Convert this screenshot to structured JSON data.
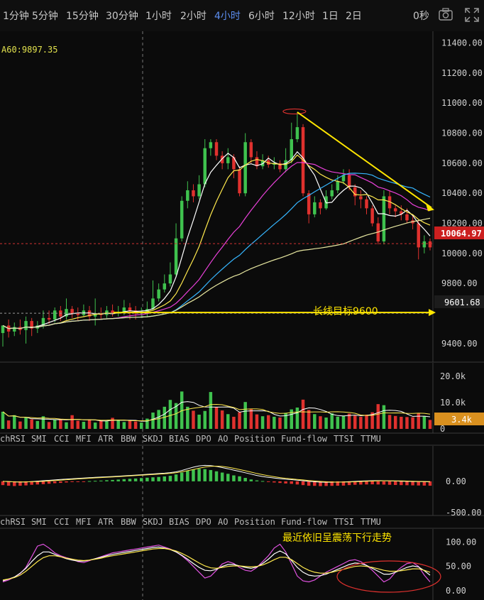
{
  "toolbar": {
    "timeframes": [
      "1分钟",
      "5分钟",
      "15分钟",
      "30分钟",
      "1小时",
      "2小时",
      "4小时",
      "6小时",
      "12小时",
      "1日",
      "2日"
    ],
    "active_timeframe": "4小时",
    "countdown": "0秒",
    "icons": [
      "camera-icon",
      "fullscreen-icon"
    ]
  },
  "ma_readout": "A60:9897.35",
  "price_panel": {
    "current_price_label": "10064.97",
    "target_label": "9601.68",
    "annotations": {
      "target_text": "长线目标9600"
    },
    "colors": {
      "up": "#3fc24e",
      "down": "#e0312e",
      "annotation": "#ffe600"
    }
  },
  "volume_panel": {
    "current_label": "3.4k"
  },
  "indicator_tabs_1": [
    "chRSI",
    "SMI",
    "CCI",
    "MFI",
    "ATR",
    "BBW",
    "SKDJ",
    "BIAS",
    "DPO",
    "AO",
    "Position",
    "Fund-flow",
    "TTSI",
    "TTMU"
  ],
  "indicator_tabs_2": [
    "chRSI",
    "SMI",
    "CCI",
    "MFI",
    "ATR",
    "BBW",
    "SKDJ",
    "BIAS",
    "DPO",
    "AO",
    "Position",
    "Fund-flow",
    "TTSI",
    "TTMU"
  ],
  "oscillator_panel": {
    "annotation": "最近依旧呈震荡下行走势"
  },
  "chart_data": [
    {
      "type": "candlestick",
      "ylim": [
        9300,
        11450
      ],
      "y_ticks": [
        9400,
        9600,
        9800,
        10000,
        10200,
        10400,
        10600,
        10800,
        11000,
        11200,
        11400
      ],
      "y_tick_labels": [
        "9400.00",
        "",
        "9800.00",
        "10000.00",
        "10200.00",
        "10400.00",
        "10600.00",
        "10800.00",
        "11000.00",
        "11200.00",
        "11400.00"
      ],
      "candles": [
        [
          9470,
          9520,
          9470,
          9380
        ],
        [
          9520,
          9480,
          9560,
          9440
        ],
        [
          9480,
          9510,
          9540,
          9450
        ],
        [
          9510,
          9490,
          9560,
          9460
        ],
        [
          9490,
          9550,
          9580,
          9400
        ],
        [
          9550,
          9500,
          9570,
          9450
        ],
        [
          9500,
          9520,
          9550,
          9470
        ],
        [
          9520,
          9570,
          9620,
          9500
        ],
        [
          9570,
          9560,
          9620,
          9530
        ],
        [
          9560,
          9620,
          9640,
          9540
        ],
        [
          9620,
          9580,
          9650,
          9550
        ],
        [
          9580,
          9630,
          9700,
          9560
        ],
        [
          9630,
          9600,
          9650,
          9570
        ],
        [
          9600,
          9590,
          9640,
          9550
        ],
        [
          9590,
          9620,
          9660,
          9580
        ],
        [
          9620,
          9580,
          9650,
          9550
        ],
        [
          9580,
          9600,
          9700,
          9520
        ],
        [
          9600,
          9590,
          9640,
          9560
        ],
        [
          9590,
          9620,
          9650,
          9570
        ],
        [
          9620,
          9600,
          9660,
          9580
        ],
        [
          9600,
          9610,
          9650,
          9580
        ],
        [
          9610,
          9640,
          9690,
          9590
        ],
        [
          9640,
          9620,
          9670,
          9560
        ],
        [
          9620,
          9600,
          9650,
          9560
        ],
        [
          9600,
          9610,
          9640,
          9570
        ],
        [
          9610,
          9630,
          9680,
          9580
        ],
        [
          9630,
          9700,
          9820,
          9620
        ],
        [
          9700,
          9760,
          9800,
          9680
        ],
        [
          9760,
          9800,
          9860,
          9740
        ],
        [
          9800,
          9860,
          9940,
          9780
        ],
        [
          9860,
          10100,
          10200,
          9840
        ],
        [
          10100,
          10350,
          10380,
          10080
        ],
        [
          10350,
          10420,
          10480,
          10300
        ],
        [
          10420,
          10380,
          10460,
          10340
        ],
        [
          10380,
          10460,
          10520,
          10360
        ],
        [
          10460,
          10700,
          10760,
          10440
        ],
        [
          10700,
          10740,
          10760,
          10650
        ],
        [
          10740,
          10650,
          10760,
          10620
        ],
        [
          10650,
          10600,
          10680,
          10560
        ],
        [
          10600,
          10640,
          10700,
          10560
        ],
        [
          10640,
          10560,
          10660,
          10500
        ],
        [
          10560,
          10400,
          10580,
          10380
        ],
        [
          10400,
          10740,
          10800,
          10380
        ],
        [
          10740,
          10640,
          10760,
          10600
        ],
        [
          10640,
          10580,
          10680,
          10560
        ],
        [
          10580,
          10620,
          10660,
          10560
        ],
        [
          10620,
          10590,
          10650,
          10570
        ],
        [
          10590,
          10600,
          10640,
          10560
        ],
        [
          10600,
          10560,
          10620,
          10540
        ],
        [
          10560,
          10620,
          10700,
          10540
        ],
        [
          10620,
          10760,
          10870,
          10600
        ],
        [
          10760,
          10840,
          10940,
          10740
        ],
        [
          10840,
          10400,
          10860,
          10380
        ],
        [
          10400,
          10260,
          10420,
          10200
        ],
        [
          10260,
          10340,
          10380,
          10240
        ],
        [
          10340,
          10300,
          10360,
          10260
        ],
        [
          10300,
          10380,
          10420,
          10290
        ],
        [
          10380,
          10420,
          10460,
          10360
        ],
        [
          10420,
          10480,
          10520,
          10400
        ],
        [
          10480,
          10520,
          10560,
          10460
        ],
        [
          10520,
          10440,
          10560,
          10420
        ],
        [
          10440,
          10380,
          10460,
          10320
        ],
        [
          10380,
          10360,
          10420,
          10300
        ],
        [
          10360,
          10300,
          10380,
          10260
        ],
        [
          10300,
          10200,
          10320,
          10180
        ],
        [
          10200,
          10080,
          10240,
          10060
        ],
        [
          10080,
          10380,
          10420,
          10060
        ],
        [
          10380,
          10300,
          10420,
          10260
        ],
        [
          10300,
          10280,
          10320,
          10240
        ],
        [
          10280,
          10260,
          10320,
          10220
        ],
        [
          10260,
          10220,
          10300,
          10200
        ],
        [
          10220,
          10200,
          10260,
          10160
        ],
        [
          10200,
          10040,
          10220,
          9960
        ],
        [
          10040,
          10080,
          10120,
          10000
        ],
        [
          10080,
          10040,
          10100,
          10020
        ]
      ],
      "ma_lines": [
        {
          "name": "MA5",
          "color": "#ffffff"
        },
        {
          "name": "MA10",
          "color": "#ffe94d"
        },
        {
          "name": "MA20",
          "color": "#e840d8"
        },
        {
          "name": "MA30",
          "color": "#36b6ff"
        },
        {
          "name": "MA60",
          "color": "#e7e7a0"
        }
      ]
    },
    {
      "type": "bar",
      "ylim": [
        0,
        24000
      ],
      "y_ticks": [
        0,
        10000,
        20000
      ],
      "y_tick_labels": [
        "0",
        "10.0k",
        "20.0k"
      ],
      "values": [
        6500,
        3200,
        5200,
        2800,
        4400,
        3600,
        3000,
        4800,
        2600,
        3500,
        3800,
        2500,
        5200,
        3100,
        2700,
        3600,
        2400,
        3300,
        2900,
        4200,
        3500,
        2600,
        3100,
        2800,
        2400,
        3900,
        6200,
        7200,
        8400,
        11000,
        9800,
        14200,
        8400,
        6900,
        5400,
        6800,
        14000,
        8200,
        7000,
        5600,
        4600,
        6300,
        10200,
        7600,
        5500,
        4800,
        5200,
        4600,
        4300,
        6100,
        7400,
        8100,
        11100,
        7200,
        5600,
        4800,
        4300,
        5900,
        4600,
        4900,
        5800,
        5000,
        4600,
        5400,
        6300,
        9400,
        9000,
        5300,
        4900,
        4600,
        4500,
        4400,
        5800,
        4800,
        3400
      ]
    },
    {
      "type": "bar",
      "ylim": [
        -500,
        520
      ],
      "y_ticks": [
        -500,
        0
      ],
      "y_tick_labels": [
        "-500.00",
        "0.00"
      ],
      "values": [
        -60,
        -70,
        -75,
        -70,
        -65,
        -55,
        -50,
        -45,
        -38,
        -30,
        -25,
        -18,
        -12,
        -8,
        -2,
        4,
        8,
        12,
        18,
        22,
        28,
        35,
        40,
        45,
        52,
        58,
        64,
        70,
        78,
        88,
        110,
        140,
        170,
        190,
        200,
        195,
        180,
        160,
        140,
        120,
        95,
        80,
        55,
        30,
        15,
        5,
        -8,
        -18,
        -26,
        -34,
        -40,
        -50,
        -60,
        -70,
        -72,
        -76,
        -74,
        -72,
        -70,
        -68,
        -60,
        -55,
        -52,
        -50,
        -48,
        -50,
        -52,
        -55,
        -58,
        -60,
        -62,
        -64,
        -66,
        -68,
        -70
      ]
    },
    {
      "type": "line",
      "ylim": [
        -15,
        120
      ],
      "y_ticks": [
        0,
        50,
        100
      ],
      "y_tick_labels": [
        "0.00",
        "50.00",
        "100.00"
      ],
      "series": [
        {
          "color": "#e052e0",
          "values": [
            18,
            22,
            28,
            35,
            48,
            70,
            92,
            96,
            88,
            78,
            72,
            68,
            65,
            60,
            58,
            62,
            66,
            70,
            74,
            78,
            80,
            82,
            84,
            86,
            88,
            90,
            92,
            94,
            90,
            86,
            80,
            72,
            62,
            50,
            38,
            26,
            30,
            42,
            55,
            60,
            56,
            48,
            42,
            40,
            48,
            60,
            72,
            88,
            96,
            80,
            55,
            30,
            20,
            18,
            22,
            30,
            38,
            44,
            50,
            56,
            62,
            64,
            60,
            52,
            42,
            30,
            18,
            24,
            38,
            48,
            56,
            58,
            50,
            32,
            18
          ]
        },
        {
          "color": "#ffffff",
          "values": [
            20,
            24,
            28,
            36,
            46,
            60,
            72,
            80,
            80,
            75,
            70,
            66,
            63,
            61,
            61,
            63,
            66,
            69,
            72,
            75,
            77,
            79,
            81,
            83,
            85,
            87,
            89,
            90,
            88,
            85,
            80,
            73,
            65,
            56,
            48,
            42,
            41,
            44,
            50,
            54,
            54,
            51,
            48,
            46,
            49,
            56,
            65,
            76,
            82,
            76,
            62,
            48,
            38,
            32,
            30,
            31,
            34,
            39,
            44,
            49,
            54,
            57,
            56,
            52,
            46,
            40,
            34,
            34,
            38,
            43,
            48,
            51,
            49,
            41,
            32
          ]
        },
        {
          "color": "#ffe94d",
          "values": [
            22,
            24,
            27,
            32,
            40,
            50,
            60,
            68,
            72,
            72,
            70,
            67,
            65,
            63,
            62,
            63,
            65,
            67,
            70,
            72,
            74,
            76,
            78,
            80,
            82,
            84,
            86,
            87,
            87,
            85,
            82,
            77,
            71,
            64,
            57,
            51,
            47,
            46,
            48,
            50,
            51,
            51,
            50,
            49,
            50,
            53,
            58,
            64,
            69,
            69,
            64,
            56,
            48,
            42,
            38,
            36,
            36,
            38,
            41,
            44,
            47,
            50,
            51,
            50,
            48,
            45,
            42,
            40,
            40,
            41,
            43,
            45,
            45,
            42,
            38
          ]
        }
      ]
    }
  ]
}
